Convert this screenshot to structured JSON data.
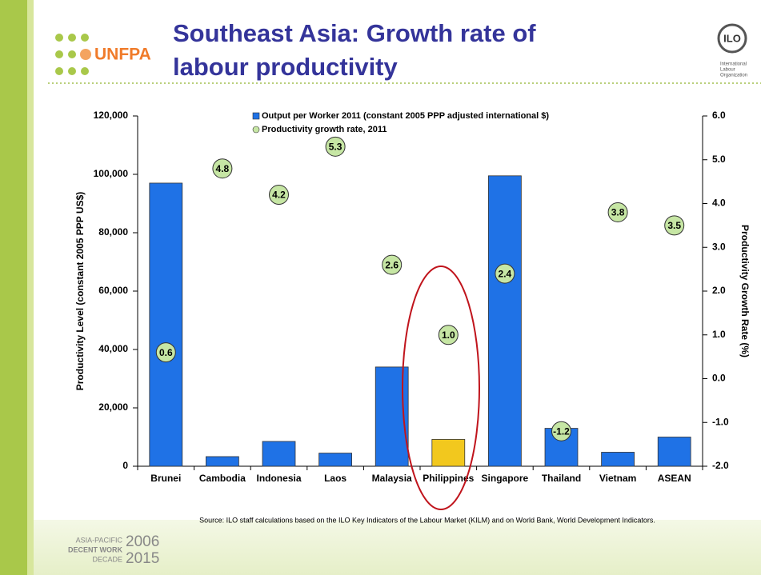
{
  "header": {
    "title_lines": [
      "Southeast Asia: Growth rate of",
      "labour productivity"
    ],
    "logo_text": "UNFPA",
    "org_lines": [
      "International",
      "Labour",
      "Organization"
    ]
  },
  "chart_data": {
    "type": "bar",
    "categories": [
      "Brunei",
      "Cambodia",
      "Indonesia",
      "Laos",
      "Malaysia",
      "Philippines",
      "Singapore",
      "Thailand",
      "Vietnam",
      "ASEAN"
    ],
    "series": [
      {
        "name": "Output per Worker 2011 (constant 2005 PPP adjusted international $)",
        "color": "#1f72e6",
        "colors": [
          "#1f72e6",
          "#1f72e6",
          "#1f72e6",
          "#1f72e6",
          "#1f72e6",
          "#f2c81e",
          "#1f72e6",
          "#1f72e6",
          "#1f72e6",
          "#1f72e6"
        ],
        "values": [
          97000,
          3300,
          8500,
          4500,
          34000,
          9200,
          99500,
          13000,
          4800,
          10000
        ]
      },
      {
        "name": "Productivity growth rate, 2011",
        "type": "scatter",
        "axis": "y2",
        "color": "#c6e6a4",
        "values": [
          0.6,
          4.8,
          4.2,
          5.3,
          2.6,
          1.0,
          2.4,
          -1.2,
          3.8,
          3.5
        ],
        "value_labels": [
          "0.6",
          "4.8",
          "4.2",
          "5.3",
          "2.6",
          "1.0",
          "2.4",
          "-1.2",
          "3.8",
          "3.5"
        ]
      }
    ],
    "ylabel": "Productivity Level (constant 2005 PPP US$)",
    "y2label": "Productivity Growth Rate (%)",
    "ylim": [
      0,
      120000
    ],
    "yticks": [
      0,
      {
        "value": 20000,
        "label": "20,000"
      },
      {
        "value": 40000,
        "label": "40,000"
      },
      {
        "value": 60000,
        "label": "60,000"
      },
      {
        "value": 80000,
        "label": "80,000"
      },
      {
        "value": 100000,
        "label": "100,000"
      },
      {
        "value": 120000,
        "label": "120,000"
      }
    ],
    "y2lim": [
      -2,
      6
    ],
    "y2ticks": [
      {
        "value": -2,
        "label": "-2.0"
      },
      {
        "value": -1,
        "label": "-1.0"
      },
      {
        "value": 0,
        "label": "0.0"
      },
      {
        "value": 1,
        "label": "1.0"
      },
      {
        "value": 2,
        "label": "2.0"
      },
      {
        "value": 3,
        "label": "3.0"
      },
      {
        "value": 4,
        "label": "4.0"
      },
      {
        "value": 5,
        "label": "5.0"
      },
      {
        "value": 6,
        "label": "6.0"
      }
    ],
    "grid": false,
    "legend": "top",
    "source": "Source: ILO staff calculations based on the ILO Key Indicators of the Labour Market (KILM) and on World Bank, World Development Indicators."
  },
  "footer": {
    "lines": [
      "ASIA-PACIFIC",
      "DECENT WORK",
      "DECADE"
    ],
    "years": [
      "2006",
      "2015"
    ]
  }
}
